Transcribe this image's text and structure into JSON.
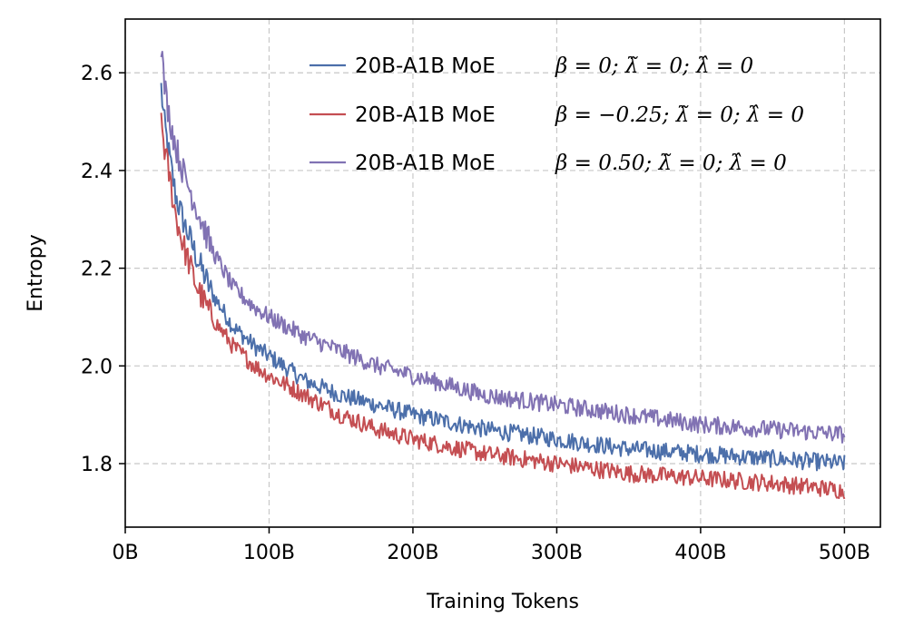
{
  "chart_data": {
    "type": "line",
    "title": "",
    "xlabel": "Training Tokens",
    "ylabel": "Entropy",
    "xlim": [
      0,
      525
    ],
    "ylim": [
      1.67,
      2.71
    ],
    "x_ticks": [
      0,
      100,
      200,
      300,
      400,
      500
    ],
    "x_tick_labels": [
      "0B",
      "100B",
      "200B",
      "300B",
      "400B",
      "500B"
    ],
    "y_ticks": [
      1.8,
      2.0,
      2.2,
      2.4,
      2.6
    ],
    "y_tick_labels": [
      "1.8",
      "2.0",
      "2.2",
      "2.4",
      "2.6"
    ],
    "grid": true,
    "legend_position": "top-right",
    "x": [
      25,
      27,
      30,
      35,
      40,
      50,
      60,
      75,
      90,
      100,
      125,
      150,
      175,
      200,
      250,
      300,
      350,
      400,
      450,
      500
    ],
    "series": [
      {
        "name": "20B-A1B MoE",
        "math": "β = 0;  λ̃ = 0;  λ̂ = 0",
        "color": "#4c6faa",
        "values": [
          2.57,
          2.5,
          2.44,
          2.35,
          2.3,
          2.22,
          2.15,
          2.08,
          2.04,
          2.02,
          1.97,
          1.94,
          1.92,
          1.9,
          1.87,
          1.85,
          1.83,
          1.82,
          1.81,
          1.8
        ]
      },
      {
        "name": "20B-A1B MoE",
        "math": "β = −0.25;  λ̃ = 0;  λ̂ = 0",
        "color": "#c44e52",
        "values": [
          2.51,
          2.45,
          2.4,
          2.31,
          2.25,
          2.16,
          2.1,
          2.04,
          2.0,
          1.98,
          1.94,
          1.9,
          1.87,
          1.85,
          1.82,
          1.8,
          1.78,
          1.77,
          1.76,
          1.745
        ]
      },
      {
        "name": "20B-A1B MoE",
        "math": "β = 0.50;  λ̃ = 0;  λ̂ = 0",
        "color": "#8172b3",
        "values": [
          2.66,
          2.58,
          2.52,
          2.45,
          2.4,
          2.32,
          2.24,
          2.16,
          2.12,
          2.1,
          2.06,
          2.03,
          2.0,
          1.98,
          1.94,
          1.92,
          1.9,
          1.88,
          1.87,
          1.86
        ]
      }
    ]
  }
}
